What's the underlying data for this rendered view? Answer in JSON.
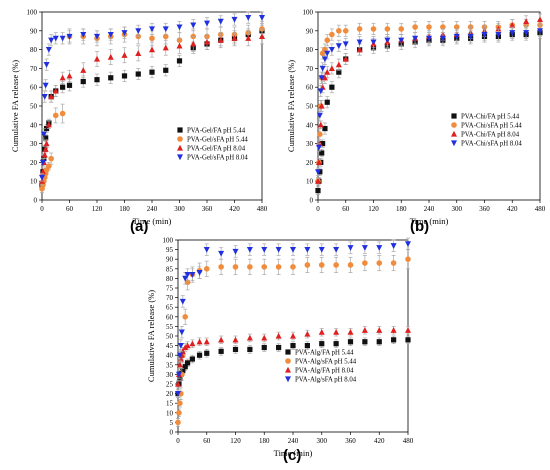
{
  "colors": {
    "black": "#111111",
    "orange": "#f08c3c",
    "red": "#e02020",
    "blue": "#2030e0",
    "error_bar": "#a8a8a8"
  },
  "panel_labels": [
    "(a)",
    "(b)",
    "(c)"
  ],
  "chart_data": [
    {
      "type": "scatter",
      "panel": "(a)",
      "xlabel": "Time (min)",
      "ylabel": "Cumulative FA release (%)",
      "xlim": [
        0,
        480
      ],
      "ylim": [
        0,
        100
      ],
      "xticks": [
        0,
        60,
        120,
        180,
        240,
        300,
        360,
        420,
        480
      ],
      "yticks": [
        0,
        10,
        20,
        30,
        40,
        50,
        60,
        70,
        80,
        90,
        100
      ],
      "grid": false,
      "error_bars": true,
      "legend_position": "right",
      "series": [
        {
          "name": "PVA-Gel/FA pH 5.44",
          "color": "black",
          "marker": "square",
          "x": [
            0,
            2,
            4,
            6,
            8,
            10,
            15,
            20,
            30,
            45,
            60,
            90,
            120,
            150,
            180,
            210,
            240,
            270,
            300,
            330,
            360,
            390,
            420,
            450,
            480
          ],
          "y": [
            8,
            15,
            22,
            27,
            33,
            38,
            41,
            55,
            58,
            60,
            61,
            63,
            64,
            65,
            66,
            67,
            68,
            69,
            74,
            81,
            83,
            85,
            86,
            88,
            90
          ],
          "err": [
            2,
            2,
            2,
            2,
            2,
            2,
            2,
            3,
            3,
            3,
            3,
            3,
            3,
            3,
            3,
            3,
            3,
            3,
            3,
            3,
            3,
            3,
            3,
            3,
            3
          ]
        },
        {
          "name": "PVA-Gel/sFA pH 5.44",
          "color": "orange",
          "marker": "circle",
          "x": [
            0,
            2,
            4,
            6,
            8,
            10,
            15,
            20,
            30,
            45,
            60,
            90,
            120,
            150,
            180,
            210,
            240,
            270,
            300,
            330,
            360,
            390,
            420,
            450,
            480
          ],
          "y": [
            6,
            8,
            10,
            12,
            14,
            16,
            18,
            22,
            45,
            46,
            87,
            87,
            86,
            87,
            88,
            87,
            86,
            87,
            85,
            87,
            87,
            88,
            88,
            89,
            91
          ],
          "err": [
            2,
            2,
            2,
            2,
            2,
            2,
            2,
            3,
            4,
            5,
            4,
            4,
            4,
            4,
            4,
            4,
            4,
            4,
            4,
            4,
            4,
            4,
            4,
            4,
            4
          ]
        },
        {
          "name": "PVA-Gel/FA pH 8.04",
          "color": "red",
          "marker": "triangle-up",
          "x": [
            0,
            2,
            4,
            6,
            8,
            10,
            15,
            20,
            30,
            45,
            60,
            90,
            120,
            150,
            180,
            210,
            240,
            270,
            300,
            330,
            360,
            390,
            420,
            450,
            480
          ],
          "y": [
            10,
            15,
            20,
            24,
            27,
            30,
            40,
            55,
            58,
            65,
            66,
            69,
            75,
            76,
            77,
            78,
            80,
            81,
            82,
            83,
            84,
            85,
            86,
            86,
            87
          ],
          "err": [
            2,
            2,
            2,
            2,
            2,
            2,
            2,
            3,
            3,
            3,
            3,
            4,
            4,
            4,
            4,
            4,
            4,
            4,
            4,
            4,
            4,
            4,
            4,
            4,
            4
          ]
        },
        {
          "name": "PVA-Gel/sFA pH 8.04",
          "color": "blue",
          "marker": "triangle-down",
          "x": [
            0,
            2,
            4,
            6,
            8,
            10,
            15,
            20,
            30,
            45,
            60,
            90,
            120,
            150,
            180,
            210,
            240,
            270,
            300,
            330,
            360,
            390,
            420,
            450,
            480
          ],
          "y": [
            12,
            20,
            35,
            55,
            61,
            72,
            80,
            85,
            86,
            86,
            87,
            88,
            87,
            88,
            89,
            90,
            91,
            91,
            92,
            93,
            94,
            95,
            96,
            97,
            97
          ],
          "err": [
            2,
            2,
            3,
            3,
            3,
            3,
            3,
            3,
            3,
            3,
            3,
            3,
            3,
            3,
            3,
            3,
            3,
            3,
            3,
            3,
            3,
            3,
            3,
            3,
            3
          ]
        }
      ]
    },
    {
      "type": "scatter",
      "panel": "(b)",
      "xlabel": "Time (min)",
      "ylabel": "Cumulative FA release (%)",
      "xlim": [
        0,
        480
      ],
      "ylim": [
        0,
        100
      ],
      "xticks": [
        0,
        60,
        120,
        180,
        240,
        300,
        360,
        420,
        480
      ],
      "yticks": [
        0,
        10,
        20,
        30,
        40,
        50,
        60,
        70,
        80,
        90,
        100
      ],
      "grid": false,
      "error_bars": true,
      "legend_position": "right",
      "series": [
        {
          "name": "PVA-Chi/FA pH 5.44",
          "color": "black",
          "marker": "square",
          "x": [
            0,
            2,
            4,
            6,
            8,
            10,
            15,
            20,
            30,
            45,
            60,
            90,
            120,
            150,
            180,
            210,
            240,
            270,
            300,
            330,
            360,
            390,
            420,
            450,
            480
          ],
          "y": [
            5,
            10,
            15,
            20,
            25,
            30,
            38,
            52,
            60,
            68,
            75,
            80,
            81,
            82,
            83,
            84,
            85,
            85,
            86,
            86,
            87,
            87,
            88,
            88,
            89
          ],
          "err": [
            2,
            2,
            2,
            2,
            2,
            2,
            3,
            3,
            3,
            3,
            3,
            3,
            3,
            3,
            3,
            3,
            3,
            3,
            3,
            3,
            3,
            3,
            3,
            3,
            3
          ]
        },
        {
          "name": "PVA-Chi/sFA pH 5.44",
          "color": "orange",
          "marker": "circle",
          "x": [
            0,
            2,
            4,
            6,
            8,
            10,
            15,
            20,
            30,
            45,
            60,
            90,
            120,
            150,
            180,
            210,
            240,
            270,
            300,
            330,
            360,
            390,
            420,
            450,
            480
          ],
          "y": [
            10,
            20,
            35,
            50,
            65,
            78,
            80,
            85,
            88,
            90,
            90,
            91,
            91,
            91,
            91,
            92,
            92,
            92,
            92,
            92,
            92,
            92,
            93,
            93,
            93
          ],
          "err": [
            2,
            2,
            3,
            3,
            3,
            3,
            3,
            3,
            3,
            3,
            3,
            3,
            3,
            3,
            3,
            3,
            3,
            3,
            3,
            3,
            3,
            3,
            3,
            3,
            3
          ]
        },
        {
          "name": "PVA-Chi/FA pH 8.04",
          "color": "red",
          "marker": "triangle-up",
          "x": [
            0,
            2,
            4,
            6,
            8,
            10,
            15,
            20,
            30,
            45,
            60,
            90,
            120,
            150,
            180,
            210,
            240,
            270,
            300,
            330,
            360,
            390,
            420,
            450,
            480
          ],
          "y": [
            10,
            20,
            30,
            40,
            50,
            60,
            65,
            68,
            70,
            72,
            75,
            80,
            83,
            84,
            85,
            86,
            87,
            88,
            88,
            89,
            90,
            91,
            93,
            95,
            96
          ],
          "err": [
            2,
            2,
            2,
            2,
            3,
            3,
            3,
            3,
            3,
            3,
            3,
            3,
            3,
            3,
            3,
            3,
            3,
            3,
            3,
            3,
            3,
            3,
            3,
            3,
            3
          ]
        },
        {
          "name": "PVA-Chi/sFA pH 8.04",
          "color": "blue",
          "marker": "triangle-down",
          "x": [
            0,
            2,
            4,
            6,
            8,
            10,
            15,
            20,
            30,
            45,
            60,
            90,
            120,
            150,
            180,
            210,
            240,
            270,
            300,
            330,
            360,
            390,
            420,
            450,
            480
          ],
          "y": [
            15,
            28,
            45,
            58,
            65,
            70,
            75,
            78,
            80,
            82,
            83,
            84,
            84,
            85,
            85,
            86,
            86,
            86,
            87,
            87,
            88,
            88,
            89,
            89,
            90
          ],
          "err": [
            2,
            2,
            3,
            3,
            3,
            3,
            3,
            3,
            3,
            3,
            3,
            3,
            3,
            3,
            3,
            3,
            3,
            3,
            3,
            3,
            3,
            3,
            3,
            3,
            3
          ]
        }
      ]
    },
    {
      "type": "scatter",
      "panel": "(c)",
      "xlabel": "Time (min)",
      "ylabel": "Cumulative FA release (%)",
      "xlim": [
        0,
        480
      ],
      "ylim": [
        0,
        100
      ],
      "xticks": [
        0,
        60,
        120,
        180,
        240,
        300,
        360,
        420,
        480
      ],
      "yticks": [
        0,
        5,
        10,
        15,
        20,
        25,
        30,
        35,
        40,
        45,
        50,
        55,
        60,
        65,
        70,
        75,
        80,
        85,
        90,
        95,
        100
      ],
      "grid": false,
      "error_bars": true,
      "legend_position": "right",
      "series": [
        {
          "name": "PVA-Alg/FA pH 5.44",
          "color": "black",
          "marker": "square",
          "x": [
            0,
            2,
            4,
            6,
            8,
            10,
            15,
            20,
            30,
            45,
            60,
            90,
            120,
            150,
            180,
            210,
            240,
            270,
            300,
            330,
            360,
            390,
            420,
            450,
            480
          ],
          "y": [
            20,
            25,
            28,
            30,
            31,
            32,
            34,
            36,
            38,
            40,
            41,
            42,
            43,
            43,
            44,
            44,
            45,
            45,
            46,
            46,
            47,
            47,
            47,
            48,
            48
          ],
          "err": [
            2,
            2,
            2,
            2,
            2,
            2,
            2,
            2,
            2,
            2,
            2,
            2,
            2,
            2,
            2,
            2,
            2,
            2,
            2,
            2,
            2,
            2,
            2,
            2,
            2
          ]
        },
        {
          "name": "PVA-Alg/sFA pH 5.44",
          "color": "orange",
          "marker": "circle",
          "x": [
            0,
            2,
            4,
            6,
            8,
            10,
            15,
            20,
            30,
            45,
            60,
            90,
            120,
            150,
            180,
            210,
            240,
            270,
            300,
            330,
            360,
            390,
            420,
            450,
            480
          ],
          "y": [
            5,
            10,
            15,
            20,
            30,
            40,
            60,
            78,
            82,
            84,
            85,
            86,
            86,
            86,
            86,
            86,
            86,
            87,
            87,
            87,
            87,
            88,
            88,
            88,
            90
          ],
          "err": [
            2,
            2,
            2,
            3,
            3,
            4,
            4,
            4,
            4,
            4,
            4,
            4,
            4,
            4,
            4,
            4,
            4,
            4,
            4,
            4,
            4,
            4,
            4,
            4,
            5
          ]
        },
        {
          "name": "PVA-Alg/FA pH 8.04",
          "color": "red",
          "marker": "triangle-up",
          "x": [
            0,
            2,
            4,
            6,
            8,
            10,
            15,
            20,
            30,
            45,
            60,
            90,
            120,
            150,
            180,
            210,
            240,
            270,
            300,
            330,
            360,
            390,
            420,
            450,
            480
          ],
          "y": [
            25,
            30,
            35,
            38,
            40,
            42,
            44,
            45,
            46,
            47,
            47,
            48,
            48,
            49,
            49,
            50,
            50,
            51,
            52,
            52,
            52,
            53,
            53,
            53,
            53
          ],
          "err": [
            2,
            2,
            2,
            2,
            2,
            2,
            2,
            2,
            2,
            2,
            2,
            2,
            2,
            2,
            2,
            2,
            2,
            2,
            2,
            2,
            2,
            2,
            2,
            2,
            2
          ]
        },
        {
          "name": "PVA-Alg/sFA pH 8.04",
          "color": "blue",
          "marker": "triangle-down",
          "x": [
            0,
            2,
            4,
            6,
            8,
            10,
            15,
            20,
            30,
            45,
            60,
            90,
            120,
            150,
            180,
            210,
            240,
            270,
            300,
            330,
            360,
            390,
            420,
            450,
            480
          ],
          "y": [
            20,
            30,
            40,
            45,
            52,
            68,
            80,
            82,
            82,
            83,
            95,
            93,
            94,
            95,
            95,
            95,
            95,
            95,
            95,
            95,
            96,
            96,
            96,
            97,
            98
          ],
          "err": [
            2,
            2,
            3,
            3,
            3,
            3,
            3,
            3,
            3,
            3,
            3,
            3,
            3,
            3,
            3,
            3,
            3,
            3,
            3,
            3,
            3,
            3,
            3,
            3,
            3
          ]
        }
      ]
    }
  ]
}
